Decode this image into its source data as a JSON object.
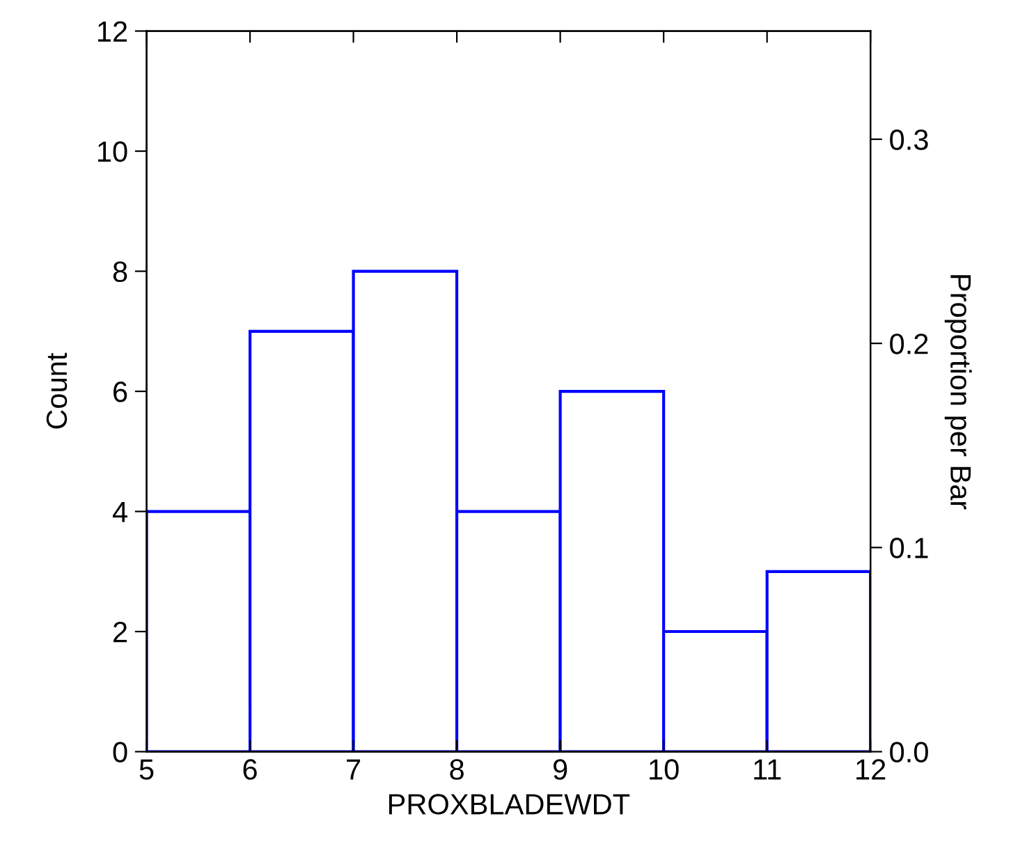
{
  "chart_data": {
    "type": "histogram",
    "xlabel": "PROXBLADEWDT",
    "ylabel": "Count",
    "y2label": "Proportion per Bar",
    "bins": [
      5,
      6,
      7,
      8,
      9,
      10,
      11,
      12
    ],
    "values": [
      4,
      7,
      8,
      4,
      6,
      2,
      3
    ],
    "color": "#0000ff",
    "xlim": [
      5,
      12
    ],
    "xticks": [
      5,
      6,
      7,
      8,
      9,
      10,
      11,
      12
    ],
    "ylim": [
      0,
      12
    ],
    "yticks": [
      0,
      2,
      4,
      6,
      8,
      10,
      12
    ],
    "y2lim": [
      0,
      0.353
    ],
    "y2ticks": [
      {
        "value": 0,
        "label": "0.0"
      },
      0.1,
      0.2,
      0.3
    ],
    "grid": false
  }
}
